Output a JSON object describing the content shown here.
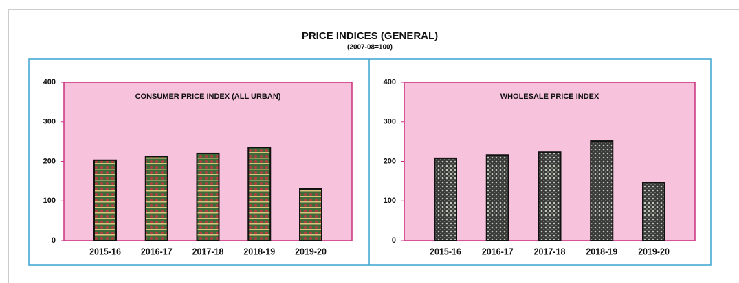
{
  "header": {
    "title": "PRICE INDICES (GENERAL)",
    "subtitle": "(2007-08=100)"
  },
  "chart_data": [
    {
      "type": "bar",
      "title": "CONSUMER PRICE INDEX (ALL URBAN)",
      "categories": [
        "2015-16",
        "2016-17",
        "2017-18",
        "2018-19",
        "2019-20"
      ],
      "values": [
        203,
        213,
        220,
        235,
        130
      ],
      "color": "#6b5a3a",
      "ylim": [
        0,
        400
      ],
      "yticks": [
        0,
        100,
        200,
        300,
        400
      ]
    },
    {
      "type": "bar",
      "title": "WHOLESALE PRICE INDEX",
      "categories": [
        "2015-16",
        "2016-17",
        "2017-18",
        "2018-19",
        "2019-20"
      ],
      "values": [
        208,
        216,
        223,
        251,
        147
      ],
      "color": "#4a4a4a",
      "ylim": [
        0,
        400
      ],
      "yticks": [
        0,
        100,
        200,
        300,
        400
      ]
    }
  ]
}
